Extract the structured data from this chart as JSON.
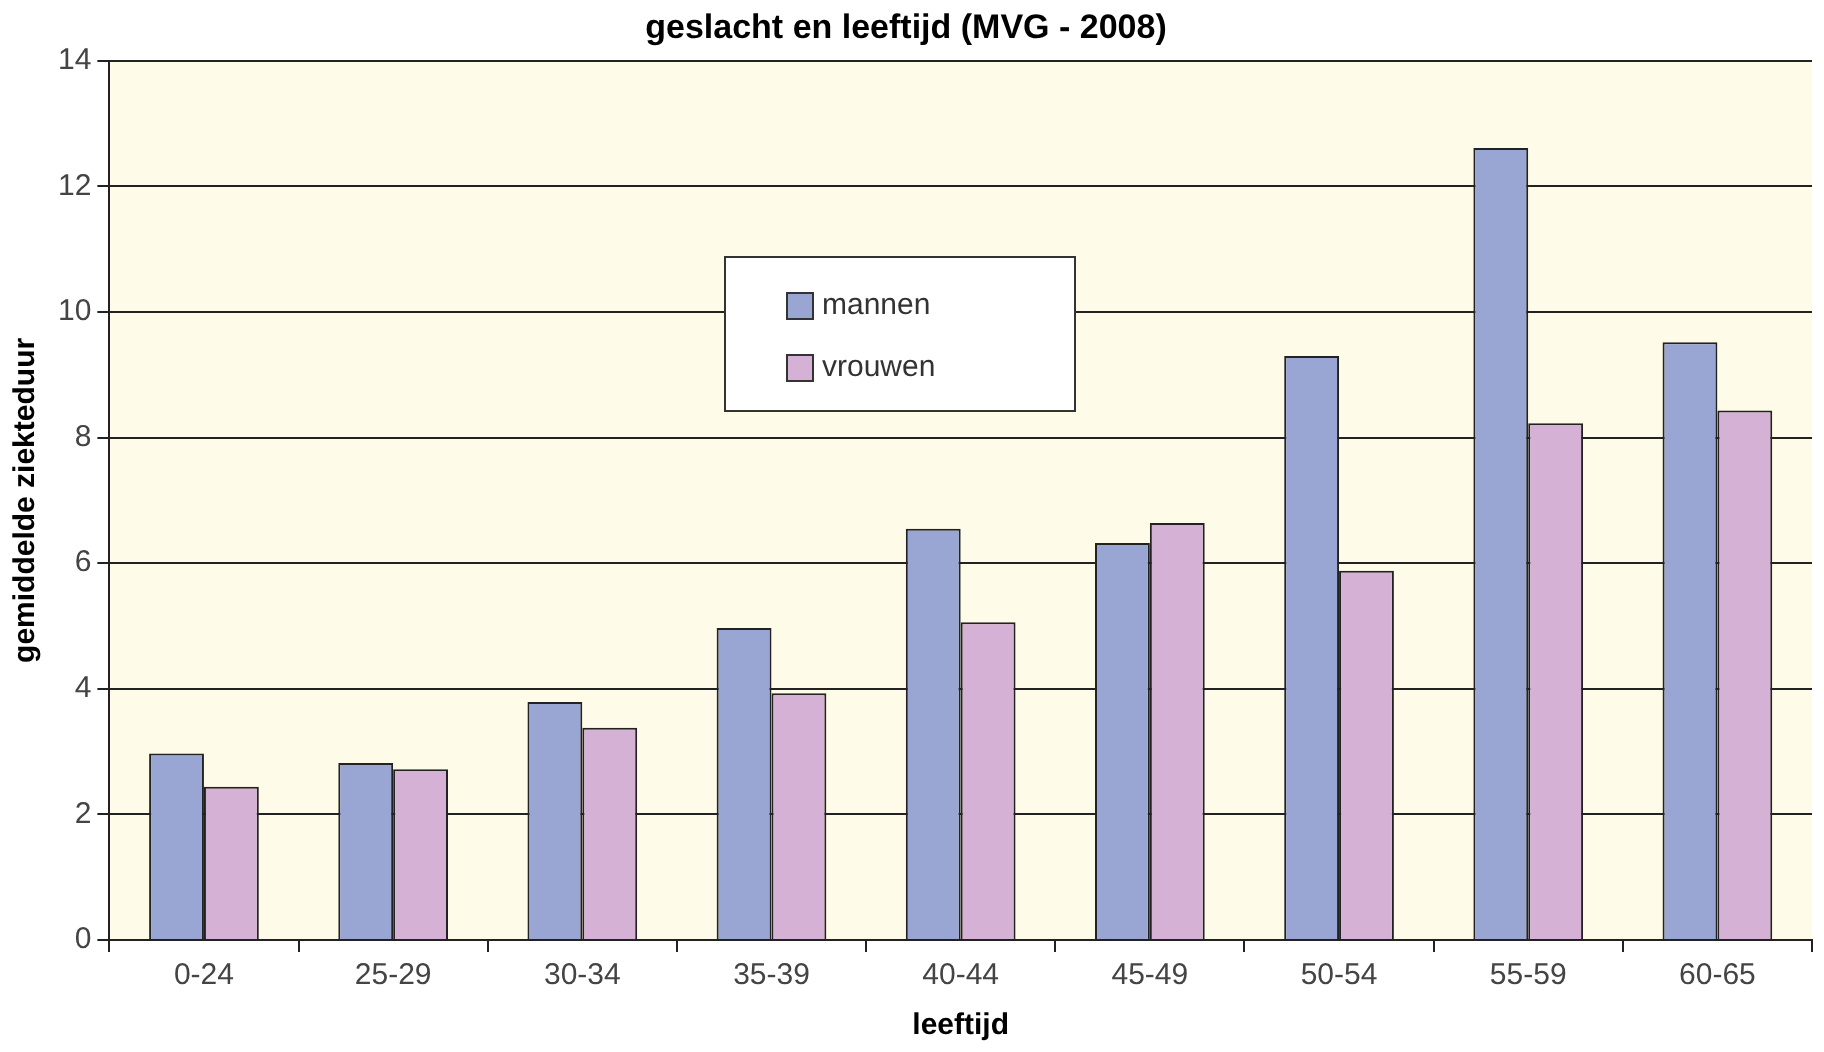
{
  "chart_data": {
    "type": "bar",
    "title": "geslacht en leeftijd (MVG - 2008)",
    "xlabel": "leeftijd",
    "ylabel": "gemiddelde ziekteduur",
    "categories": [
      "0-24",
      "25-29",
      "30-34",
      "35-39",
      "40-44",
      "45-49",
      "50-54",
      "55-59",
      "60-65"
    ],
    "series": [
      {
        "name": "mannen",
        "color": "#99a6d4",
        "values": [
          2.97,
          2.82,
          3.79,
          4.97,
          6.55,
          6.32,
          9.3,
          12.61,
          9.52
        ]
      },
      {
        "name": "vrouwen",
        "color": "#d5b1d5",
        "values": [
          2.44,
          2.72,
          3.38,
          3.93,
          5.06,
          6.64,
          5.88,
          8.23,
          8.43
        ]
      }
    ],
    "ylim": [
      0,
      14
    ],
    "yticks": [
      0,
      2,
      4,
      6,
      8,
      10,
      12,
      14
    ],
    "grid": "y",
    "legend": "top"
  }
}
